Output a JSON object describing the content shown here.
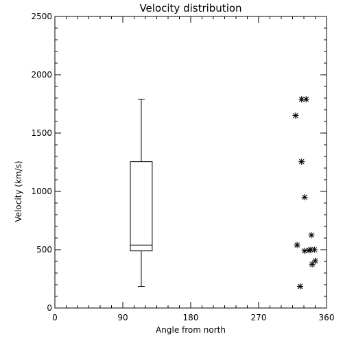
{
  "chart_data": {
    "type": "scatter",
    "title": "Velocity distribution",
    "xlabel": "Angle from north",
    "ylabel": "Velocity (km/s)",
    "xlim": [
      0,
      360
    ],
    "ylim": [
      0,
      2500
    ],
    "xticks": [
      0,
      90,
      180,
      270,
      360
    ],
    "yticks": [
      0,
      500,
      1000,
      1500,
      2000,
      2500
    ],
    "grid": false,
    "boxplot": {
      "x_range": [
        100,
        129
      ],
      "whisker_low": 185,
      "q1": 490,
      "median": 540,
      "q3": 1255,
      "whisker_high": 1790
    },
    "points": [
      {
        "x": 319,
        "y": 1650
      },
      {
        "x": 327,
        "y": 1790
      },
      {
        "x": 333,
        "y": 1790
      },
      {
        "x": 327,
        "y": 1255
      },
      {
        "x": 331,
        "y": 950
      },
      {
        "x": 340,
        "y": 625
      },
      {
        "x": 321,
        "y": 540
      },
      {
        "x": 331,
        "y": 490
      },
      {
        "x": 337,
        "y": 495
      },
      {
        "x": 339,
        "y": 500
      },
      {
        "x": 344,
        "y": 500
      },
      {
        "x": 345,
        "y": 405
      },
      {
        "x": 341,
        "y": 375
      },
      {
        "x": 325,
        "y": 185
      }
    ]
  }
}
